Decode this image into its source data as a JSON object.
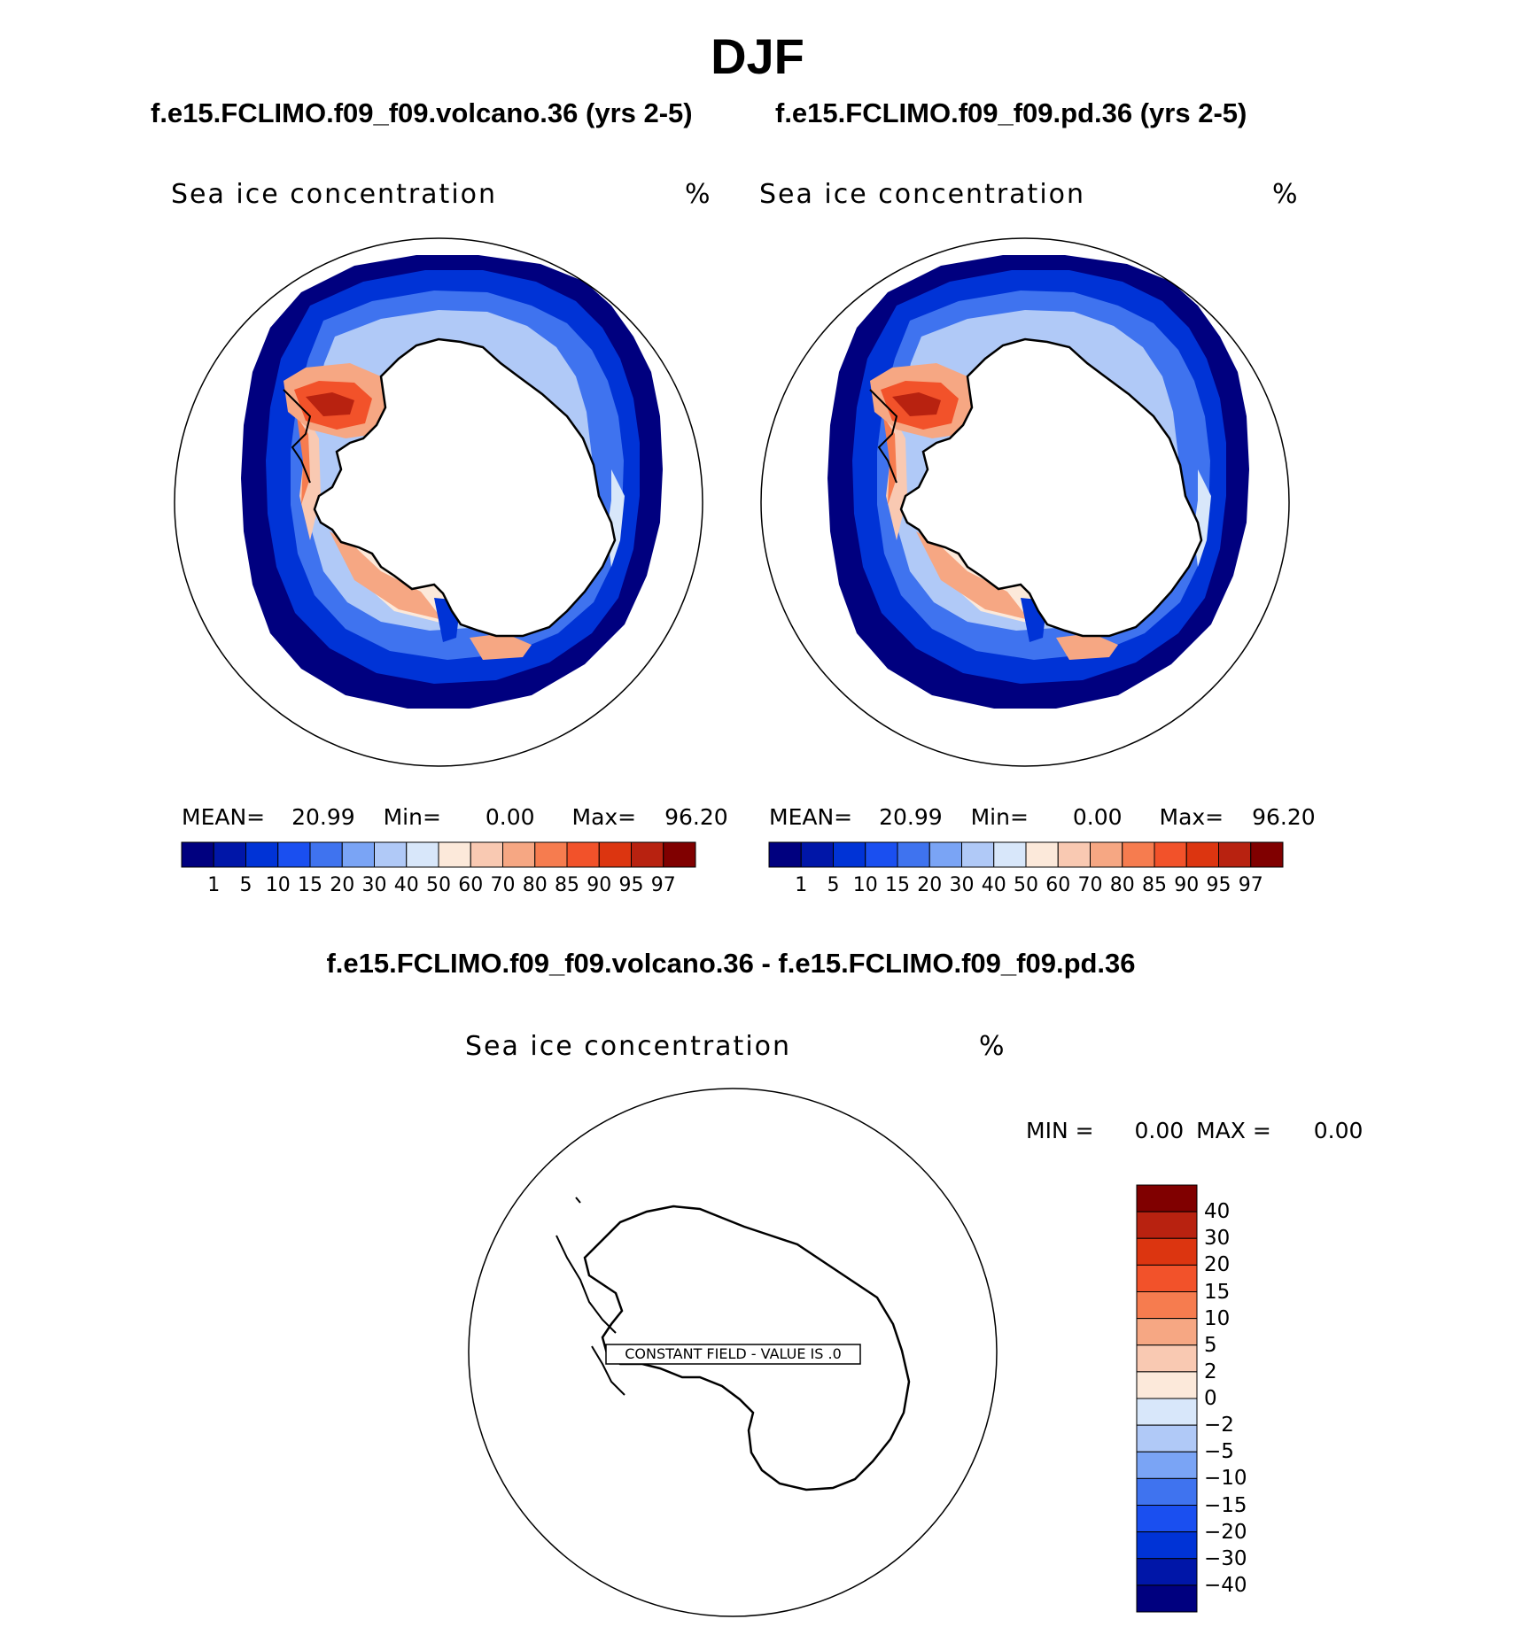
{
  "figure": {
    "season": "DJF",
    "panels": [
      {
        "case_title": "f.e15.FCLIMO.f09_f09.volcano.36 (yrs 2-5)",
        "variable": "Sea ice concentration",
        "units": "%",
        "stats": {
          "mean_label": "MEAN=",
          "mean": "20.99",
          "min_label": "Min=",
          "min": "0.00",
          "max_label": "Max=",
          "max": "96.20"
        }
      },
      {
        "case_title": "f.e15.FCLIMO.f09_f09.pd.36 (yrs 2-5)",
        "variable": "Sea ice concentration",
        "units": "%",
        "stats": {
          "mean_label": "MEAN=",
          "mean": "20.99",
          "min_label": "Min=",
          "min": "0.00",
          "max_label": "Max=",
          "max": "96.20"
        }
      }
    ],
    "abs_colorbar": {
      "colors": [
        "#00007f",
        "#0016a8",
        "#0033d6",
        "#1a4ff0",
        "#3f73ef",
        "#7aa4f5",
        "#b0c9f7",
        "#d8e7fa",
        "#fce9da",
        "#f9c9b2",
        "#f6a783",
        "#f67c4f",
        "#f2522a",
        "#dc3510",
        "#b82210",
        "#800000"
      ],
      "ticks": [
        "1",
        "5",
        "10",
        "15",
        "20",
        "30",
        "40",
        "50",
        "60",
        "70",
        "80",
        "85",
        "90",
        "95",
        "97"
      ]
    },
    "difference": {
      "title": "f.e15.FCLIMO.f09_f09.volcano.36 - f.e15.FCLIMO.f09_f09.pd.36",
      "variable": "Sea ice concentration",
      "units": "%",
      "min_label": "MIN =",
      "min": "0.00",
      "max_label": "MAX =",
      "max": "0.00",
      "message": "CONSTANT FIELD - VALUE IS .0",
      "colorbar": {
        "colors_top_to_bottom": [
          "#800000",
          "#b82210",
          "#dc3510",
          "#f2522a",
          "#f67c4f",
          "#f6a783",
          "#f9c9b2",
          "#fce9da",
          "#d8e7fa",
          "#b0c9f7",
          "#7aa4f5",
          "#3f73ef",
          "#1a4ff0",
          "#0033d6",
          "#0016a8",
          "#00007f"
        ],
        "ticks": [
          "40",
          "30",
          "20",
          "15",
          "10",
          "5",
          "2",
          "0",
          "−2",
          "−5",
          "−10",
          "−15",
          "−20",
          "−30",
          "−40"
        ]
      }
    }
  }
}
